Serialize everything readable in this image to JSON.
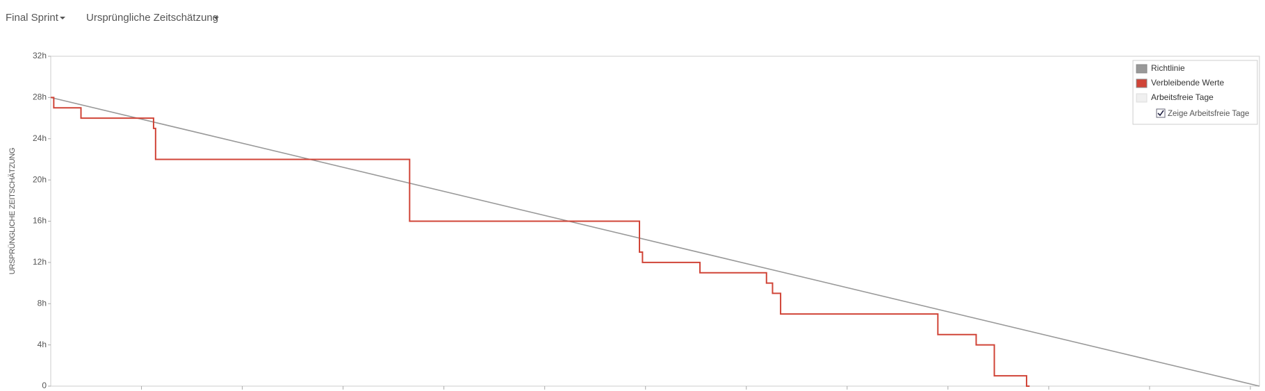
{
  "header": {
    "sprint": "Final Sprint",
    "statistic": "Ursprüngliche Zeitschätzung"
  },
  "chart_data": {
    "type": "step-line",
    "y_label": "URSPRÜNGLICHE ZEITSCHÄTZUNG",
    "xlim": [
      0.1,
      12.09
    ],
    "xticks": [
      1,
      2,
      3,
      4,
      5,
      6,
      7,
      8,
      9,
      10,
      11,
      12
    ],
    "ylim": [
      0,
      32
    ],
    "yticks": [
      {
        "value": 0,
        "label": "0"
      },
      {
        "value": 4,
        "label": "4h"
      },
      {
        "value": 8,
        "label": "8h"
      },
      {
        "value": 12,
        "label": "12h"
      },
      {
        "value": 16,
        "label": "16h"
      },
      {
        "value": 20,
        "label": "20h"
      },
      {
        "value": 24,
        "label": "24h"
      },
      {
        "value": 28,
        "label": "28h"
      },
      {
        "value": 32,
        "label": "32h"
      }
    ],
    "series": [
      {
        "name": "Richtlinie",
        "color": "#999999",
        "step": false,
        "x": [
          0.1,
          12.09
        ],
        "values": [
          28,
          0
        ]
      },
      {
        "name": "Verbleibende Werte",
        "color": "#d04437",
        "step": true,
        "x": [
          0.1,
          0.13,
          0.4,
          1.12,
          1.14,
          3.66,
          5.94,
          5.97,
          6.54,
          7.2,
          7.26,
          7.34,
          8.9,
          9.28,
          9.46,
          9.78,
          9.81
        ],
        "values": [
          28,
          27,
          26,
          25,
          22,
          16,
          13,
          12,
          11,
          10,
          9,
          7,
          5,
          4,
          1,
          0,
          0
        ]
      }
    ],
    "non_working_label": "Arbeitsfreie Tage",
    "non_working_color": "#f0f0f0",
    "checkbox_label": "Zeige Arbeitsfreie Tage",
    "checkbox_checked": true
  }
}
